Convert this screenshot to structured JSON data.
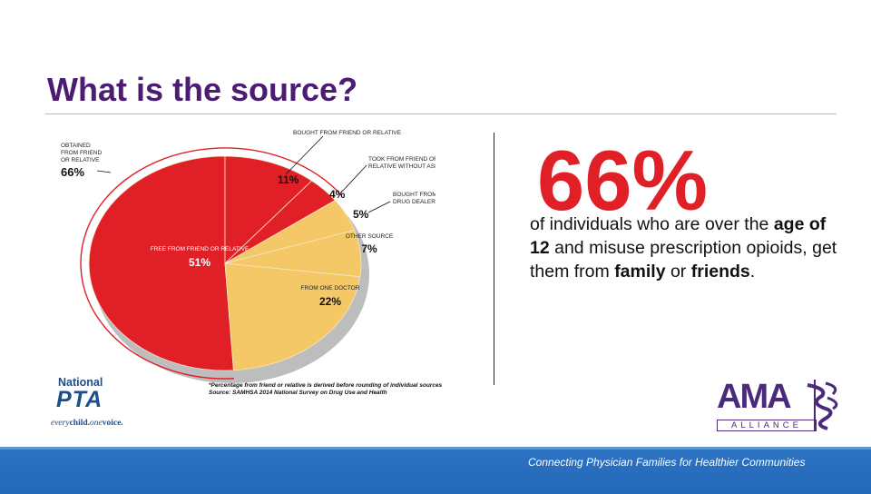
{
  "slide": {
    "title": "What is the source?",
    "big_stat": "66%",
    "statement": {
      "part1": "of individuals who are over the ",
      "bold1": "age of 12",
      "part2": " and misuse prescription opioids, get them from ",
      "bold2": "family",
      "part3": " or ",
      "bold3": "friends",
      "part4": "."
    },
    "footnote": {
      "line1": "*Percentage from friend or relative is derived before rounding of individual sources",
      "line2": "Source:  SAMHSA 2014 National Survey on Drug Use and Health"
    },
    "footer_text": "Connecting Physician Families for Healthier Communities"
  },
  "logos": {
    "pta_national": "National",
    "pta_word": "PTA",
    "pta_tagline_a": "every",
    "pta_tagline_b": "child.",
    "pta_tagline_c": "one",
    "pta_tagline_d": "voice.",
    "ama_word": "AMA",
    "ama_sub": "ALLIANCE"
  },
  "chart_data": {
    "type": "pie",
    "title": "",
    "slices": [
      {
        "label": "FREE FROM FRIEND OR RELATIVE",
        "value": 51,
        "display": "51%",
        "color": "#e01f26"
      },
      {
        "label": "BOUGHT FROM FRIEND OR RELATIVE",
        "value": 11,
        "display": "11%",
        "color": "#e01f26"
      },
      {
        "label": "TOOK FROM FRIEND OR RELATIVE WITHOUT ASKING",
        "value": 4,
        "display": "4%",
        "color": "#e01f26"
      },
      {
        "label": "BOUGHT FROM DRUG DEALER",
        "value": 5,
        "display": "5%",
        "color": "#f5c867"
      },
      {
        "label": "OTHER SOURCE",
        "value": 7,
        "display": "7%",
        "color": "#f5c867"
      },
      {
        "label": "FROM ONE DOCTOR",
        "value": 22,
        "display": "22%",
        "color": "#f5c867"
      }
    ],
    "group_annotation": {
      "label": "OBTAINED FROM FRIEND OR RELATIVE",
      "value": 66,
      "display": "66%"
    },
    "colors": {
      "friend_relative": "#e01f26",
      "other": "#f5c867",
      "shadow": "#bdbdbd",
      "arc": "#e01f26"
    }
  }
}
